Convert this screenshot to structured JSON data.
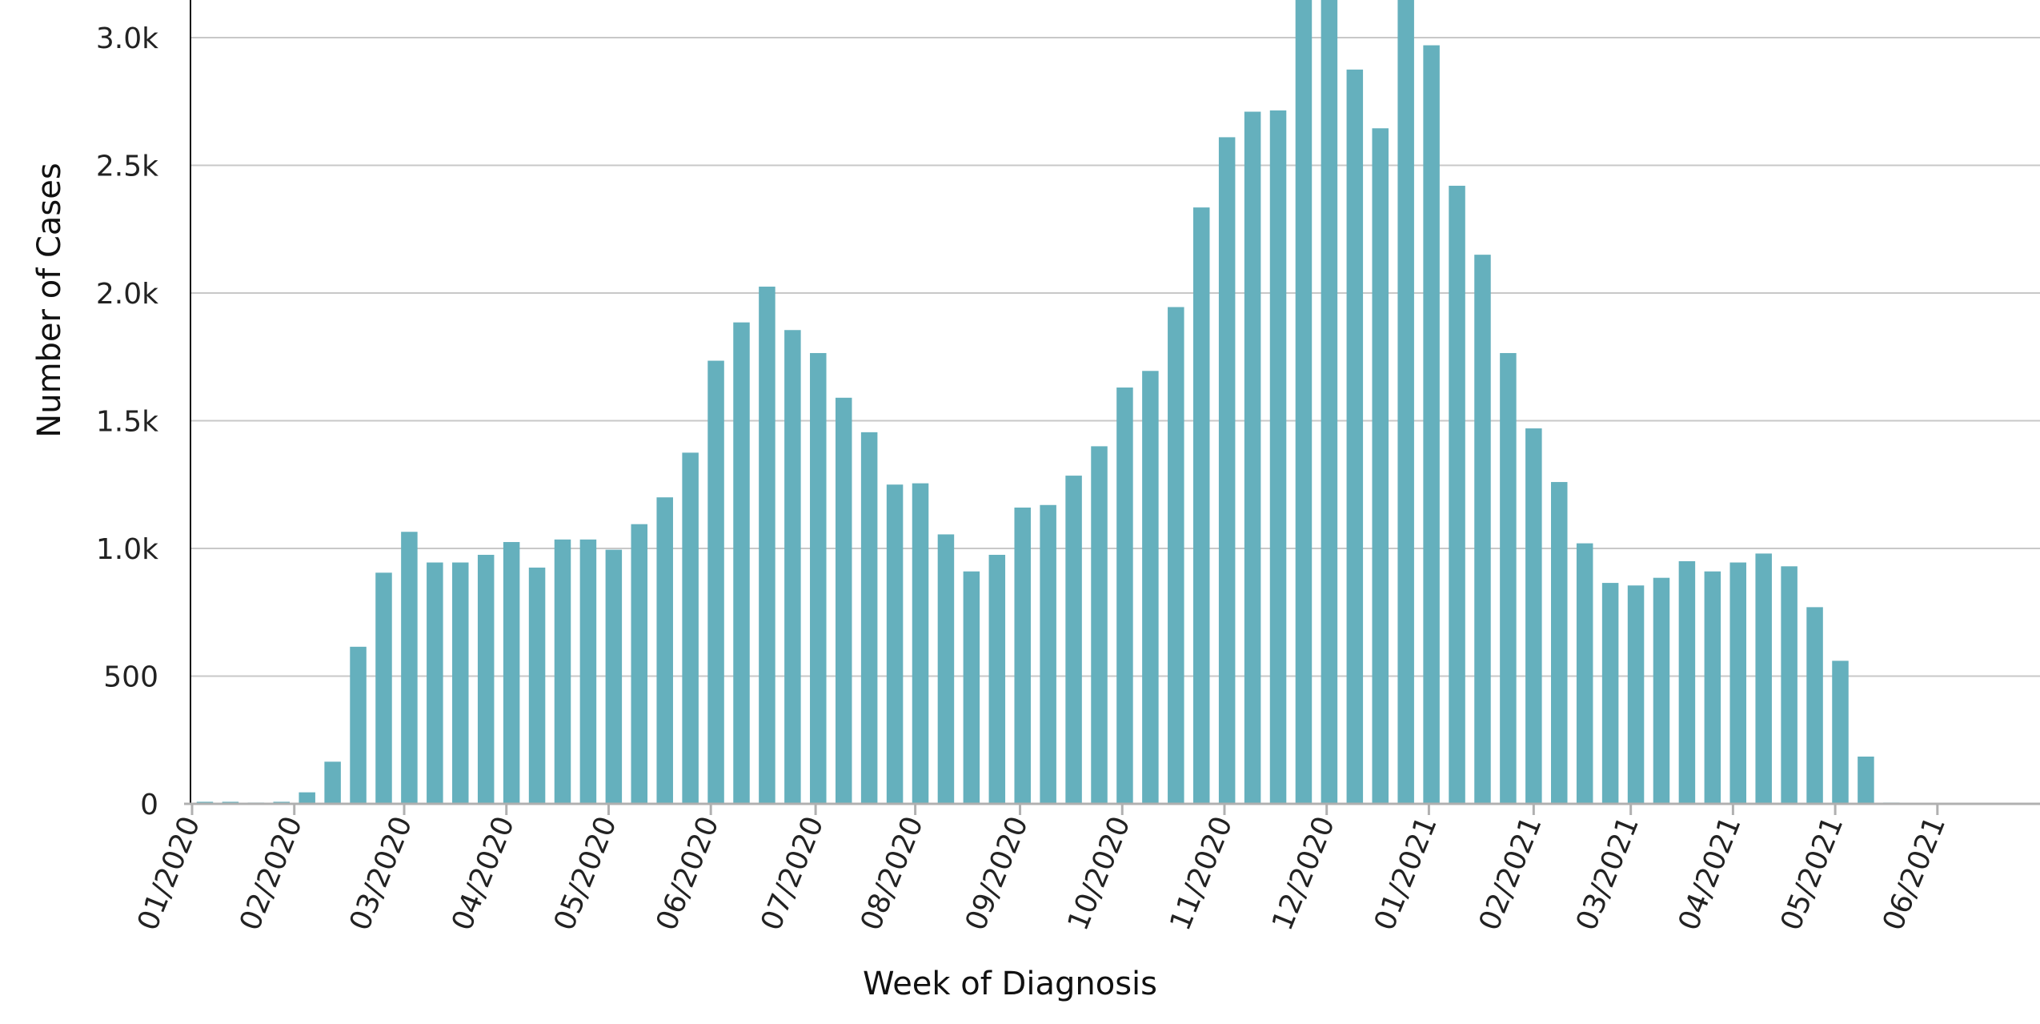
{
  "chart_data": {
    "type": "bar",
    "xlabel": "Week of Diagnosis",
    "ylabel": "Number of Cases",
    "ylim": [
      0,
      3150
    ],
    "y_ticks": [
      0,
      500,
      1000,
      1500,
      2000,
      2500,
      3000
    ],
    "y_tick_labels": [
      "0",
      "500",
      "1.0k",
      "1.5k",
      "2.0k",
      "2.5k",
      "3.0k"
    ],
    "x_tick_labels": [
      "01/2020",
      "02/2020",
      "03/2020",
      "04/2020",
      "05/2020",
      "06/2020",
      "07/2020",
      "08/2020",
      "09/2020",
      "10/2020",
      "11/2020",
      "12/2020",
      "01/2021",
      "02/2021",
      "03/2021",
      "04/2021",
      "05/2021",
      "06/2021"
    ],
    "x_tick_weeks": [
      0,
      4,
      8.3,
      12.3,
      16.3,
      20.3,
      24.4,
      28.3,
      32.4,
      36.4,
      40.4,
      44.4,
      48.4,
      52.5,
      56.3,
      60.3,
      64.3,
      68.3
    ],
    "grid": "horizontal",
    "color": "#65B0BD",
    "values": [
      8,
      8,
      5,
      8,
      45,
      165,
      615,
      905,
      1065,
      945,
      945,
      975,
      1025,
      925,
      1035,
      1035,
      995,
      1095,
      1200,
      1375,
      1735,
      1885,
      2025,
      1855,
      1765,
      1590,
      1455,
      1250,
      1255,
      1055,
      910,
      975,
      1160,
      1170,
      1285,
      1400,
      1630,
      1695,
      1945,
      2335,
      2610,
      2710,
      2715,
      3150,
      3150,
      2875,
      2645,
      3150,
      2970,
      2420,
      2150,
      1765,
      1470,
      1260,
      1020,
      865,
      855,
      885,
      950,
      910,
      945,
      980,
      930,
      770,
      560,
      185,
      5
    ]
  }
}
